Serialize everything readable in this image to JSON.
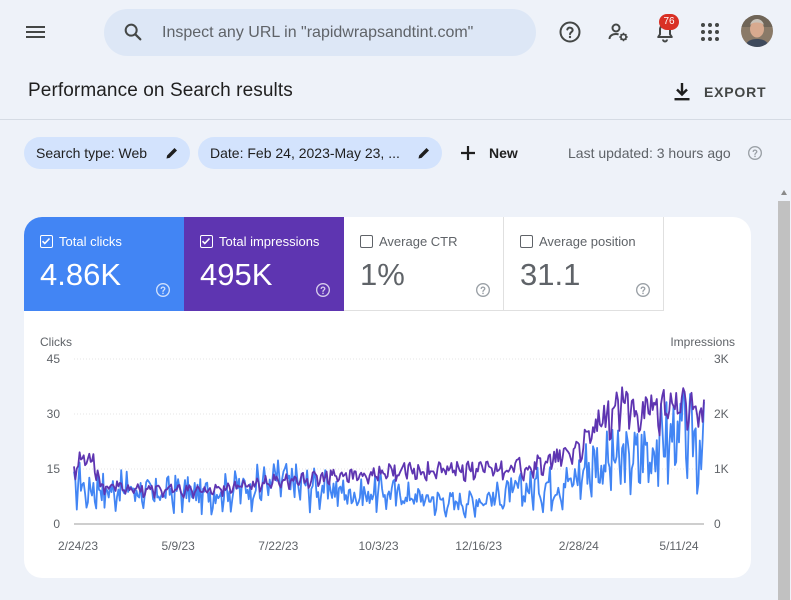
{
  "header": {
    "search_placeholder": "Inspect any URL in \"rapidwrapsandtint.com\"",
    "notifications_count": "76"
  },
  "page": {
    "title": "Performance on Search results",
    "export_label": "EXPORT"
  },
  "filters": {
    "search_type": "Search type: Web",
    "date": "Date: Feb 24, 2023-May 23, ...",
    "new_label": "New",
    "last_updated": "Last updated: 3 hours ago"
  },
  "metrics": [
    {
      "label": "Total clicks",
      "value": "4.86K",
      "checked": true
    },
    {
      "label": "Total impressions",
      "value": "495K",
      "checked": true
    },
    {
      "label": "Average CTR",
      "value": "1%",
      "checked": false
    },
    {
      "label": "Average position",
      "value": "31.1",
      "checked": false
    }
  ],
  "colors": {
    "clicks": "#4285f4",
    "impressions": "#5e35b1",
    "accent_chip": "#d3e3fd",
    "badge": "#d93025"
  },
  "chart_data": {
    "type": "line",
    "left_axis_label": "Clicks",
    "right_axis_label": "Impressions",
    "left_ticks": [
      "0",
      "15",
      "30",
      "45"
    ],
    "left_ylim": [
      0,
      45
    ],
    "right_ticks": [
      "0",
      "1K",
      "2K",
      "3K"
    ],
    "right_ylim": [
      0,
      3000
    ],
    "x_ticks": [
      "2/24/23",
      "5/9/23",
      "7/22/23",
      "10/3/23",
      "12/16/23",
      "2/28/24",
      "5/11/24"
    ],
    "x_range": [
      "2023-02-24",
      "2024-05-23"
    ],
    "grid": true,
    "series": [
      {
        "name": "Clicks",
        "axis": "left",
        "color": "#4285f4",
        "anchors": [
          [
            "2023-02-24",
            10
          ],
          [
            "2023-03-01",
            12
          ],
          [
            "2023-03-06",
            8
          ],
          [
            "2023-03-11",
            11
          ],
          [
            "2023-03-20",
            9
          ],
          [
            "2023-04-05",
            10
          ],
          [
            "2023-04-20",
            8
          ],
          [
            "2023-05-09",
            9
          ],
          [
            "2023-05-25",
            8
          ],
          [
            "2023-06-10",
            9
          ],
          [
            "2023-06-25",
            10
          ],
          [
            "2023-07-10",
            11
          ],
          [
            "2023-07-22",
            12
          ],
          [
            "2023-08-05",
            11
          ],
          [
            "2023-08-20",
            10
          ],
          [
            "2023-09-05",
            9
          ],
          [
            "2023-09-20",
            8
          ],
          [
            "2023-10-03",
            9
          ],
          [
            "2023-10-20",
            8
          ],
          [
            "2023-11-05",
            7
          ],
          [
            "2023-11-20",
            6
          ],
          [
            "2023-12-05",
            6
          ],
          [
            "2023-12-16",
            7
          ],
          [
            "2024-01-01",
            8
          ],
          [
            "2024-01-20",
            10
          ],
          [
            "2024-02-05",
            11
          ],
          [
            "2024-02-20",
            12
          ],
          [
            "2024-02-28",
            16
          ],
          [
            "2024-03-10",
            17
          ],
          [
            "2024-03-25",
            17
          ],
          [
            "2024-04-05",
            18
          ],
          [
            "2024-04-20",
            22
          ],
          [
            "2024-05-01",
            24
          ],
          [
            "2024-05-11",
            24
          ],
          [
            "2024-05-23",
            22
          ]
        ]
      },
      {
        "name": "Impressions",
        "axis": "right",
        "color": "#5e35b1",
        "anchors": [
          [
            "2023-02-24",
            1050
          ],
          [
            "2023-03-01",
            1150
          ],
          [
            "2023-03-06",
            1250
          ],
          [
            "2023-03-11",
            1150
          ],
          [
            "2023-03-15",
            700
          ],
          [
            "2023-04-05",
            650
          ],
          [
            "2023-04-20",
            620
          ],
          [
            "2023-05-09",
            620
          ],
          [
            "2023-05-25",
            600
          ],
          [
            "2023-06-10",
            650
          ],
          [
            "2023-06-25",
            700
          ],
          [
            "2023-07-10",
            750
          ],
          [
            "2023-07-22",
            800
          ],
          [
            "2023-08-05",
            800
          ],
          [
            "2023-08-20",
            830
          ],
          [
            "2023-09-05",
            870
          ],
          [
            "2023-09-20",
            900
          ],
          [
            "2023-10-03",
            930
          ],
          [
            "2023-10-20",
            960
          ],
          [
            "2023-11-05",
            980
          ],
          [
            "2023-11-20",
            990
          ],
          [
            "2023-12-05",
            980
          ],
          [
            "2023-12-16",
            1000
          ],
          [
            "2024-01-01",
            1020
          ],
          [
            "2024-01-20",
            1060
          ],
          [
            "2024-02-05",
            1150
          ],
          [
            "2024-02-20",
            1350
          ],
          [
            "2024-02-28",
            1500
          ],
          [
            "2024-03-10",
            1850
          ],
          [
            "2024-03-25",
            2150
          ],
          [
            "2024-04-05",
            2050
          ],
          [
            "2024-04-20",
            2100
          ],
          [
            "2024-05-01",
            2200
          ],
          [
            "2024-05-11",
            2100
          ],
          [
            "2024-05-23",
            2000
          ]
        ]
      }
    ]
  }
}
